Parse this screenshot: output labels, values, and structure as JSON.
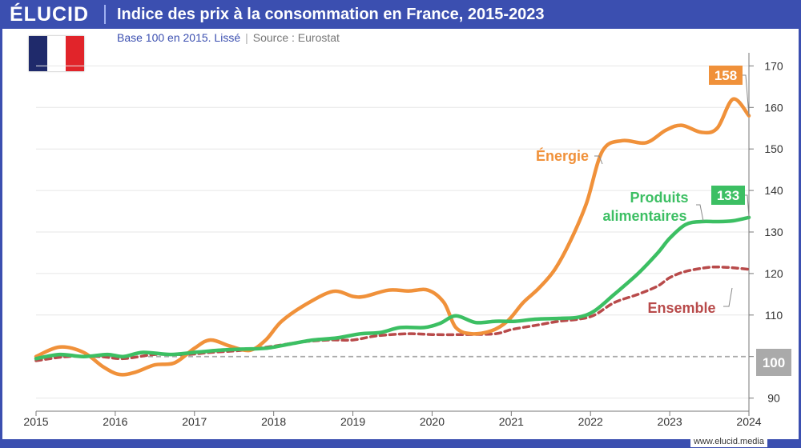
{
  "header": {
    "brand": "ÉLUCID",
    "title": "Indice des prix à la consommation en France, 2015-2023",
    "subtitle_base": "Base 100 en 2015. Lissé",
    "subtitle_source": "Source : Eurostat"
  },
  "footer": {
    "url": "www.elucid.media"
  },
  "flag": {
    "name": "France",
    "colors": [
      "#1f2a6b",
      "#ffffff",
      "#e1242a"
    ]
  },
  "colors": {
    "energie": "#f0913a",
    "alimentaires": "#3cbf63",
    "ensemble": "#b84a4a",
    "reference": "#aaaaaa",
    "accent": "#3b4fb0"
  },
  "chart_data": {
    "type": "line",
    "title": "Indice des prix à la consommation en France, 2015-2023",
    "xlabel": "",
    "ylabel": "",
    "xlim": [
      2015,
      2024
    ],
    "ylim": [
      88,
      172
    ],
    "x_ticks": [
      "2015",
      "2016",
      "2017",
      "2018",
      "2019",
      "2020",
      "2021",
      "2022",
      "2023",
      "2024"
    ],
    "y_ticks": [
      "90",
      "100",
      "110",
      "120",
      "130",
      "140",
      "150",
      "160",
      "170"
    ],
    "reference_line": {
      "value": 100,
      "label": "100"
    },
    "series": [
      {
        "name": "Énergie",
        "key": "energie",
        "end_label": "158",
        "x": [
          2015.0,
          2015.3,
          2015.6,
          2015.85,
          2016.05,
          2016.25,
          2016.5,
          2016.75,
          2017.0,
          2017.2,
          2017.45,
          2017.7,
          2017.9,
          2018.1,
          2018.4,
          2018.75,
          2019.0,
          2019.15,
          2019.45,
          2019.7,
          2019.95,
          2020.15,
          2020.3,
          2020.5,
          2020.75,
          2020.95,
          2021.15,
          2021.35,
          2021.55,
          2021.75,
          2021.95,
          2022.15,
          2022.4,
          2022.7,
          2022.95,
          2023.15,
          2023.4,
          2023.6,
          2023.8,
          2024.0
        ],
        "values": [
          100,
          102.3,
          101,
          97.5,
          95.7,
          96.2,
          98,
          98.5,
          102,
          104,
          102.5,
          101.5,
          104,
          108.5,
          112.5,
          115.7,
          114.5,
          114.5,
          116,
          115.8,
          116,
          113,
          107,
          105.5,
          106.2,
          108.5,
          113,
          116.5,
          121,
          128,
          137,
          149.5,
          152,
          151.5,
          154.5,
          155.7,
          154,
          155,
          162,
          158
        ]
      },
      {
        "name": "Produits alimentaires",
        "key": "alimentaires",
        "end_label": "133",
        "x": [
          2015.0,
          2015.3,
          2015.6,
          2015.9,
          2016.1,
          2016.35,
          2016.7,
          2017.0,
          2017.3,
          2017.6,
          2017.9,
          2018.2,
          2018.5,
          2018.8,
          2019.1,
          2019.35,
          2019.6,
          2019.9,
          2020.1,
          2020.3,
          2020.55,
          2020.8,
          2021.05,
          2021.3,
          2021.6,
          2021.85,
          2022.05,
          2022.3,
          2022.6,
          2022.85,
          2023.0,
          2023.2,
          2023.4,
          2023.6,
          2023.8,
          2024.0
        ],
        "values": [
          99.5,
          100.5,
          100,
          100.5,
          100,
          101,
          100.5,
          101,
          101.5,
          101.8,
          102,
          103,
          104,
          104.5,
          105.5,
          105.8,
          107,
          107,
          108,
          109.8,
          108.2,
          108.5,
          108.5,
          109,
          109.2,
          109.5,
          111,
          115,
          120,
          125,
          128.5,
          131.8,
          132.5,
          132.5,
          132.7,
          133.5
        ]
      },
      {
        "name": "Ensemble",
        "key": "ensemble",
        "end_label": "",
        "x": [
          2015.0,
          2015.4,
          2015.8,
          2016.1,
          2016.5,
          2016.9,
          2017.2,
          2017.6,
          2018.0,
          2018.35,
          2018.7,
          2019.0,
          2019.3,
          2019.7,
          2020.0,
          2020.4,
          2020.8,
          2021.0,
          2021.3,
          2021.6,
          2021.85,
          2022.05,
          2022.3,
          2022.6,
          2022.85,
          2023.0,
          2023.2,
          2023.5,
          2023.7,
          2023.85,
          2024.0
        ],
        "values": [
          99,
          100,
          100,
          99.5,
          100.5,
          100.5,
          101,
          101.5,
          102.5,
          103.5,
          104,
          104,
          105,
          105.5,
          105.3,
          105.3,
          105.5,
          106.5,
          107.5,
          108.5,
          109,
          110,
          113,
          115,
          117,
          119,
          120.5,
          121.5,
          121.5,
          121.3,
          121
        ]
      }
    ],
    "annotations": [
      {
        "text": "Énergie",
        "series": "energie"
      },
      {
        "text": "Produits",
        "series": "alimentaires"
      },
      {
        "text": "alimentaires",
        "series": "alimentaires"
      },
      {
        "text": "Ensemble",
        "series": "ensemble"
      }
    ]
  }
}
